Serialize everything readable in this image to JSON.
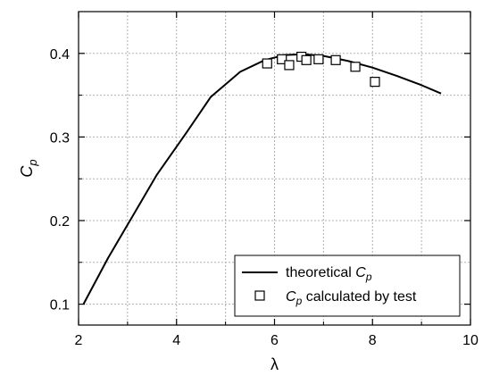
{
  "chart_data": {
    "type": "line",
    "xlabel": "λ",
    "ylabel": "C",
    "ylabel_sub": "p",
    "xlim": [
      2,
      10
    ],
    "ylim": [
      0.075,
      0.45
    ],
    "xticks": [
      2,
      4,
      6,
      8,
      10
    ],
    "yticks": [
      0.1,
      0.2,
      0.3,
      0.4
    ],
    "xtick_labels": [
      "2",
      "4",
      "6",
      "8",
      "10"
    ],
    "ytick_labels": [
      "0.1",
      "0.2",
      "0.3",
      "0.4"
    ],
    "grid": true,
    "legend_position": "bottom-right",
    "series": [
      {
        "name": "theoretical Cp",
        "legend_parts": [
          "theoretical ",
          "C",
          "p"
        ],
        "kind": "line",
        "color": "#000000",
        "x": [
          2.1,
          2.6,
          3.1,
          3.6,
          4.2,
          4.7,
          5.3,
          5.8,
          6.2,
          6.6,
          7.0,
          7.5,
          8.0,
          8.5,
          9.0,
          9.4
        ],
        "y": [
          0.1,
          0.155,
          0.205,
          0.255,
          0.305,
          0.348,
          0.378,
          0.392,
          0.398,
          0.399,
          0.397,
          0.391,
          0.383,
          0.373,
          0.362,
          0.352
        ]
      },
      {
        "name": "Cp calculated by test",
        "legend_parts": [
          "",
          "C",
          "p",
          " calculated by test"
        ],
        "kind": "scatter",
        "marker": "square-open",
        "color": "#000000",
        "x": [
          5.85,
          6.15,
          6.3,
          6.55,
          6.65,
          6.9,
          7.25,
          7.65,
          8.05
        ],
        "y": [
          0.388,
          0.393,
          0.386,
          0.396,
          0.392,
          0.393,
          0.392,
          0.384,
          0.366
        ]
      }
    ]
  }
}
